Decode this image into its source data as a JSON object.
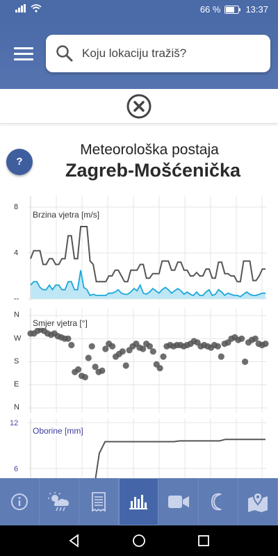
{
  "status": {
    "battery": "66 %",
    "time": "13:37"
  },
  "search": {
    "placeholder": "Koju lokaciju tražiš?"
  },
  "help": {
    "label": "?"
  },
  "station": {
    "subtitle": "Meteorološka postaja",
    "name": "Zagreb-Mošćenička"
  },
  "colors": {
    "header": "#4a6aa8",
    "nav": "#5f7cb5",
    "nav_active": "#4466a8",
    "wind_gust": "#555555",
    "wind_avg": "#1ba8d8"
  },
  "chart_data": [
    {
      "type": "line",
      "title": "Brzina vjetra [m/s]",
      "yticks": [
        "8",
        "4",
        "--"
      ],
      "ylim": [
        0,
        8
      ],
      "series": [
        {
          "values": [
            3.5,
            4.2,
            4.2,
            4.2,
            3.0,
            3.0,
            3.5,
            3.5,
            3.0,
            3.0,
            3.5,
            3.5,
            5.5,
            5.5,
            3.5,
            3.5,
            6.3,
            6.3,
            6.3,
            3.3,
            3.0,
            1.5,
            1.5,
            1.5,
            1.5,
            2.0,
            2.0,
            2.5,
            2.5,
            2.0,
            1.5,
            1.5,
            2.5,
            2.5,
            2.5,
            3.0,
            3.0,
            1.8,
            1.8,
            2.2,
            2.2,
            2.2,
            3.3,
            3.3,
            3.3,
            2.5,
            2.5,
            3.2,
            3.2,
            2.5,
            2.5,
            2.0,
            2.0,
            2.3,
            2.0,
            2.0,
            2.6,
            2.6,
            1.8,
            1.8,
            3.2,
            3.2,
            2.2,
            2.2,
            2.0,
            2.0,
            1.5,
            1.5,
            3.3,
            3.3,
            3.3,
            1.6,
            1.6,
            2.0,
            2.6,
            2.6
          ]
        },
        {
          "values": [
            1.2,
            1.5,
            1.5,
            1.0,
            0.8,
            0.8,
            1.2,
            0.8,
            1.2,
            1.2,
            0.8,
            0.8,
            1.5,
            1.5,
            0.8,
            0.8,
            2.5,
            1.0,
            0.8,
            0.3,
            0.4,
            0.3,
            0.3,
            0.3,
            0.3,
            0.5,
            0.5,
            0.6,
            0.8,
            0.5,
            0.4,
            0.4,
            0.6,
            0.9,
            0.7,
            1.2,
            0.5,
            0.4,
            0.6,
            0.9,
            0.7,
            0.5,
            0.8,
            1.0,
            0.8,
            0.5,
            0.7,
            0.9,
            0.7,
            0.4,
            0.6,
            0.4,
            0.3,
            0.6,
            0.3,
            0.3,
            0.6,
            0.8,
            0.3,
            0.4,
            0.8,
            0.6,
            0.3,
            0.5,
            0.4,
            0.3,
            0.3,
            0.2,
            0.4,
            0.6,
            0.4,
            0.3,
            0.3,
            0.4,
            0.5,
            0.5
          ]
        }
      ]
    },
    {
      "type": "scatter",
      "title": "Smjer vjetra [°]",
      "yticks": [
        "N",
        "W",
        "S",
        "E",
        "N"
      ],
      "ylim": [
        0,
        360
      ],
      "values": [
        290,
        290,
        300,
        305,
        300,
        290,
        285,
        290,
        280,
        275,
        270,
        270,
        245,
        140,
        150,
        125,
        120,
        195,
        240,
        160,
        140,
        145,
        230,
        250,
        240,
        200,
        210,
        220,
        165,
        225,
        240,
        250,
        235,
        230,
        250,
        240,
        220,
        170,
        155,
        200,
        240,
        245,
        240,
        245,
        245,
        240,
        245,
        250,
        260,
        255,
        240,
        245,
        240,
        235,
        245,
        240,
        200,
        250,
        255,
        270,
        275,
        265,
        270,
        180,
        255,
        265,
        270,
        250,
        245,
        250
      ]
    },
    {
      "type": "line",
      "title": "Oborine [mm]",
      "yticks": [
        "12",
        "6"
      ],
      "ylim": [
        0,
        12
      ],
      "values": [
        0,
        0,
        0,
        0,
        0,
        0,
        0,
        0,
        0,
        0,
        0,
        3.0,
        8.0,
        9.5,
        9.5,
        9.5,
        9.5,
        9.5,
        9.5,
        9.5,
        9.5,
        9.5,
        9.5,
        9.5,
        9.5,
        9.5,
        9.6,
        9.6,
        9.6,
        9.6,
        9.6,
        9.6,
        9.6,
        9.6,
        9.8,
        9.8,
        9.8,
        9.8,
        9.8,
        9.8,
        9.8,
        9.8
      ]
    }
  ],
  "nav": [
    {
      "icon": "info-icon"
    },
    {
      "icon": "weather-icon"
    },
    {
      "icon": "document-icon"
    },
    {
      "icon": "chart-icon",
      "active": true
    },
    {
      "icon": "camera-icon"
    },
    {
      "icon": "moon-icon"
    },
    {
      "icon": "map-icon"
    }
  ]
}
